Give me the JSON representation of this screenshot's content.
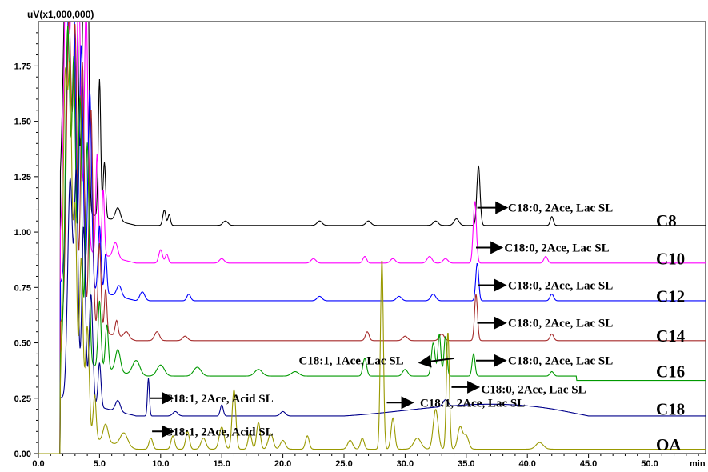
{
  "chart_data": {
    "type": "line",
    "y_unit_label": "uV(x1,000,000)",
    "x_unit_label": "min",
    "xlim": [
      0,
      55
    ],
    "ylim": [
      0,
      1.95
    ],
    "x_ticks": [
      "0.0",
      "5.0",
      "10.0",
      "15.0",
      "20.0",
      "25.0",
      "30.0",
      "35.0",
      "40.0",
      "45.0",
      "50.0"
    ],
    "y_ticks": [
      "0.00",
      "0.25",
      "0.50",
      "0.75",
      "1.00",
      "1.25",
      "1.50",
      "1.75"
    ],
    "series": [
      {
        "name": "C8",
        "color": "#000000",
        "baseline": 1.03,
        "tail": 1.03,
        "peaks": [
          [
            2.3,
            1.2,
            0.25
          ],
          [
            2.7,
            1.4,
            0.15
          ],
          [
            3.1,
            1.2,
            0.15
          ],
          [
            3.7,
            1.0,
            0.15
          ],
          [
            4.0,
            1.4,
            0.12
          ],
          [
            5.0,
            0.62,
            0.1
          ],
          [
            5.4,
            0.25,
            0.1
          ],
          [
            6.5,
            0.06,
            0.2
          ],
          [
            10.3,
            0.07,
            0.12
          ],
          [
            10.7,
            0.05,
            0.1
          ],
          [
            15.3,
            0.02,
            0.2
          ],
          [
            23,
            0.02,
            0.2
          ],
          [
            27,
            0.02,
            0.2
          ],
          [
            32.5,
            0.02,
            0.2
          ],
          [
            34.2,
            0.03,
            0.2
          ],
          [
            36.0,
            0.27,
            0.13
          ],
          [
            42,
            0.04,
            0.12
          ]
        ]
      },
      {
        "name": "C10",
        "color": "#ff00ff",
        "baseline": 0.86,
        "tail": 0.86,
        "peaks": [
          [
            2.3,
            1.4,
            0.2
          ],
          [
            2.8,
            1.3,
            0.15
          ],
          [
            3.3,
            1.2,
            0.15
          ],
          [
            3.9,
            1.1,
            0.15
          ],
          [
            4.8,
            0.45,
            0.1
          ],
          [
            5.3,
            0.3,
            0.1
          ],
          [
            6.3,
            0.07,
            0.2
          ],
          [
            10.0,
            0.06,
            0.15
          ],
          [
            10.5,
            0.04,
            0.12
          ],
          [
            15,
            0.02,
            0.2
          ],
          [
            22.5,
            0.02,
            0.2
          ],
          [
            26.7,
            0.03,
            0.15
          ],
          [
            29,
            0.02,
            0.2
          ],
          [
            32,
            0.03,
            0.2
          ],
          [
            33.3,
            0.02,
            0.2
          ],
          [
            35.7,
            0.28,
            0.13
          ],
          [
            41.5,
            0.03,
            0.15
          ]
        ]
      },
      {
        "name": "C12",
        "color": "#0000ff",
        "baseline": 0.69,
        "tail": 0.69,
        "peaks": [
          [
            2.5,
            1.3,
            0.2
          ],
          [
            2.9,
            1.2,
            0.15
          ],
          [
            3.5,
            1.1,
            0.15
          ],
          [
            4.2,
            0.9,
            0.15
          ],
          [
            5.0,
            0.3,
            0.12
          ],
          [
            5.5,
            0.18,
            0.1
          ],
          [
            6.6,
            0.05,
            0.2
          ],
          [
            8.5,
            0.04,
            0.2
          ],
          [
            12.3,
            0.03,
            0.15
          ],
          [
            23,
            0.02,
            0.2
          ],
          [
            29.5,
            0.02,
            0.2
          ],
          [
            32.3,
            0.03,
            0.2
          ],
          [
            35.9,
            0.17,
            0.12
          ],
          [
            42,
            0.03,
            0.15
          ]
        ]
      },
      {
        "name": "C14",
        "color": "#a52a2a",
        "baseline": 0.51,
        "tail": 0.51,
        "peaks": [
          [
            2.5,
            1.4,
            0.2
          ],
          [
            3.0,
            1.3,
            0.15
          ],
          [
            3.6,
            1.2,
            0.15
          ],
          [
            4.3,
            1.0,
            0.15
          ],
          [
            5.0,
            0.4,
            0.12
          ],
          [
            5.5,
            0.2,
            0.1
          ],
          [
            6.4,
            0.07,
            0.12
          ],
          [
            7.2,
            0.03,
            0.2
          ],
          [
            9.7,
            0.04,
            0.2
          ],
          [
            12,
            0.02,
            0.2
          ],
          [
            26.9,
            0.04,
            0.15
          ],
          [
            30,
            0.02,
            0.2
          ],
          [
            33,
            0.03,
            0.2
          ],
          [
            35.8,
            0.21,
            0.12
          ],
          [
            42,
            0.03,
            0.15
          ]
        ]
      },
      {
        "name": "C16",
        "color": "#009900",
        "baseline": 0.35,
        "tail": 0.33,
        "peaks": [
          [
            2.4,
            1.5,
            0.2
          ],
          [
            2.9,
            1.3,
            0.15
          ],
          [
            3.4,
            1.2,
            0.15
          ],
          [
            4.0,
            1.0,
            0.15
          ],
          [
            5.0,
            0.3,
            0.12
          ],
          [
            5.6,
            0.2,
            0.12
          ],
          [
            6.5,
            0.1,
            0.2
          ],
          [
            8.0,
            0.07,
            0.3
          ],
          [
            10,
            0.05,
            0.3
          ],
          [
            13,
            0.04,
            0.3
          ],
          [
            18,
            0.03,
            0.3
          ],
          [
            21,
            0.02,
            0.3
          ],
          [
            26.7,
            0.08,
            0.15
          ],
          [
            30,
            0.03,
            0.2
          ],
          [
            32.3,
            0.15,
            0.15
          ],
          [
            32.8,
            0.19,
            0.12
          ],
          [
            33.3,
            0.18,
            0.12
          ],
          [
            35.6,
            0.1,
            0.12
          ],
          [
            42,
            0.02,
            0.15
          ]
        ]
      },
      {
        "name": "C18",
        "color": "#00008b",
        "baseline": 0.17,
        "tail": 0.17,
        "hump": [
          25,
          45,
          0.07
        ],
        "peaks": [
          [
            2.6,
            1.0,
            0.2
          ],
          [
            3.1,
            1.0,
            0.15
          ],
          [
            3.7,
            0.8,
            0.15
          ],
          [
            4.3,
            0.5,
            0.15
          ],
          [
            5.0,
            0.2,
            0.12
          ],
          [
            6.5,
            0.05,
            0.2
          ],
          [
            9.0,
            0.17,
            0.08
          ],
          [
            11.2,
            0.02,
            0.2
          ],
          [
            15,
            0.05,
            0.12
          ],
          [
            20,
            0.02,
            0.2
          ],
          [
            33.3,
            0.03,
            0.2
          ]
        ]
      },
      {
        "name": "OA",
        "color": "#999900",
        "baseline": 0.02,
        "tail": 0.02,
        "peaks": [
          [
            2.2,
            1.6,
            0.2
          ],
          [
            2.6,
            1.4,
            0.15
          ],
          [
            3.0,
            1.0,
            0.15
          ],
          [
            3.5,
            0.8,
            0.15
          ],
          [
            4.0,
            0.5,
            0.15
          ],
          [
            4.6,
            0.2,
            0.12
          ],
          [
            5.5,
            0.08,
            0.2
          ],
          [
            7,
            0.06,
            0.3
          ],
          [
            9.2,
            0.05,
            0.15
          ],
          [
            11,
            0.06,
            0.15
          ],
          [
            12.2,
            0.08,
            0.15
          ],
          [
            13.5,
            0.05,
            0.2
          ],
          [
            15.0,
            0.1,
            0.2
          ],
          [
            16.0,
            0.27,
            0.15
          ],
          [
            17.3,
            0.07,
            0.15
          ],
          [
            18.0,
            0.12,
            0.15
          ],
          [
            19,
            0.07,
            0.2
          ],
          [
            20,
            0.04,
            0.2
          ],
          [
            22.0,
            0.06,
            0.15
          ],
          [
            25.5,
            0.04,
            0.2
          ],
          [
            26.5,
            0.05,
            0.15
          ],
          [
            28.1,
            0.86,
            0.12
          ],
          [
            29.0,
            0.14,
            0.15
          ],
          [
            31,
            0.05,
            0.3
          ],
          [
            32.5,
            0.18,
            0.2
          ],
          [
            33.5,
            0.53,
            0.12
          ],
          [
            34.5,
            0.1,
            0.2
          ],
          [
            35,
            0.06,
            0.2
          ],
          [
            41,
            0.03,
            0.3
          ]
        ]
      }
    ],
    "annotations": [
      {
        "text": "C18:0, 2Ace, Lac SL",
        "x": 37.5,
        "y": 1.11,
        "arrow": [
          [
            35.9,
            1.11
          ],
          [
            38.3,
            1.11
          ]
        ]
      },
      {
        "text": "C18:0, 2Ace, Lac SL",
        "x": 37.2,
        "y": 0.93,
        "arrow": [
          [
            35.8,
            0.93
          ],
          [
            37.9,
            0.93
          ]
        ]
      },
      {
        "text": "C18:0, 2Ace, Lac SL",
        "x": 37.5,
        "y": 0.76,
        "arrow": [
          [
            36.0,
            0.76
          ],
          [
            38.2,
            0.76
          ]
        ]
      },
      {
        "text": "C18:0, 2Ace, Lac SL",
        "x": 37.5,
        "y": 0.59,
        "arrow": [
          [
            35.9,
            0.59
          ],
          [
            38.2,
            0.59
          ]
        ]
      },
      {
        "text": "C18:1, 1Ace, Lac SL",
        "x": 21.3,
        "y": 0.42,
        "arrow": [
          [
            34.0,
            0.43
          ],
          [
            31.2,
            0.41
          ]
        ]
      },
      {
        "text": "C18:1, 1Ace, Lac SL",
        "hidden": true
      },
      {
        "text": "C18:0, 2Ace, Lac SL",
        "x": 37.5,
        "y": 0.42,
        "arrow": [
          [
            35.8,
            0.42
          ],
          [
            38.2,
            0.42
          ]
        ]
      },
      {
        "text": "C18:0, 2Ace, Lac SL",
        "x": 35.3,
        "y": 0.29,
        "arrow": [
          [
            33.8,
            0.3
          ],
          [
            36.0,
            0.3
          ]
        ]
      },
      {
        "text": "C18:1, 2Ace, Acid SL",
        "x": 10.3,
        "y": 0.25,
        "arrow": [
          [
            9.1,
            0.25
          ],
          [
            11.0,
            0.25
          ]
        ]
      },
      {
        "text": "C18:1, 2Ace, Lac SL",
        "x": 30.3,
        "y": 0.23,
        "arrow": [
          [
            28.5,
            0.23
          ],
          [
            30.6,
            0.23
          ]
        ]
      },
      {
        "text": "C18:1, 2Ace, Acid SL",
        "x": 10.3,
        "y": 0.1,
        "arrow": [
          [
            9.3,
            0.1
          ],
          [
            11.0,
            0.1
          ]
        ]
      }
    ],
    "trace_labels": [
      {
        "text": "C8",
        "y": 1.05
      },
      {
        "text": "C10",
        "y": 0.88
      },
      {
        "text": "C12",
        "y": 0.71
      },
      {
        "text": "C14",
        "y": 0.53
      },
      {
        "text": "C16",
        "y": 0.37
      },
      {
        "text": "C18",
        "y": 0.2
      },
      {
        "text": "OA",
        "y": 0.04
      }
    ]
  }
}
